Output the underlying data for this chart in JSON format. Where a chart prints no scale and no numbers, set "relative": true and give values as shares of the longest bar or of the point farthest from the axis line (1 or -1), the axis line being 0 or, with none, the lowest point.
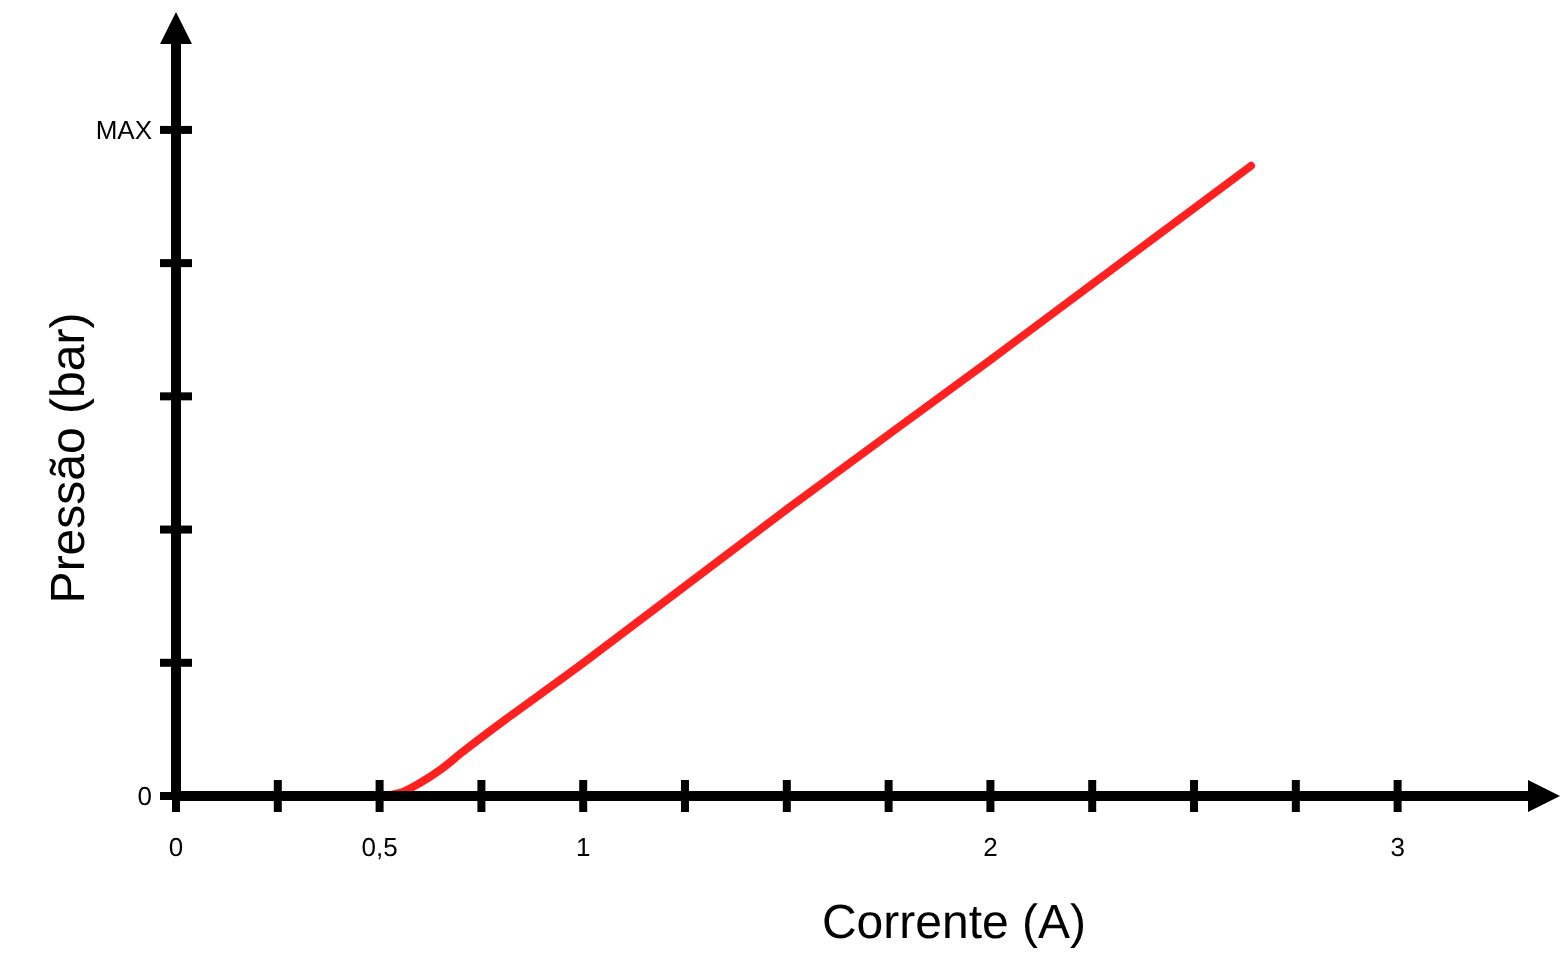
{
  "chart_data": {
    "type": "line",
    "xlabel": "Corrente (A)",
    "ylabel": "Pressão (bar)",
    "relative": true,
    "xlim": [
      0,
      3.33
    ],
    "xticks": [
      0,
      {
        "value": 0.25,
        "label": null
      },
      {
        "value": 0.5,
        "label": "0,5"
      },
      {
        "value": 0.75,
        "label": null
      },
      1,
      {
        "value": 1.25,
        "label": null
      },
      {
        "value": 1.5,
        "label": null
      },
      {
        "value": 1.75,
        "label": null
      },
      2,
      {
        "value": 2.25,
        "label": null
      },
      {
        "value": 2.5,
        "label": null
      },
      {
        "value": 2.75,
        "label": null
      },
      3
    ],
    "annotations": [
      "0",
      "MAX"
    ],
    "grid": false,
    "marker": "none",
    "line_style": "solid",
    "series": [
      {
        "color": "#ff2020",
        "x": [
          0,
          0.5,
          0.55,
          0.6,
          0.65,
          0.7,
          1,
          1.5,
          2,
          2.64
        ],
        "values": [
          0,
          0,
          0.005,
          0.021,
          0.042,
          0.068,
          0.211,
          0.455,
          0.692,
          1
        ]
      }
    ]
  }
}
